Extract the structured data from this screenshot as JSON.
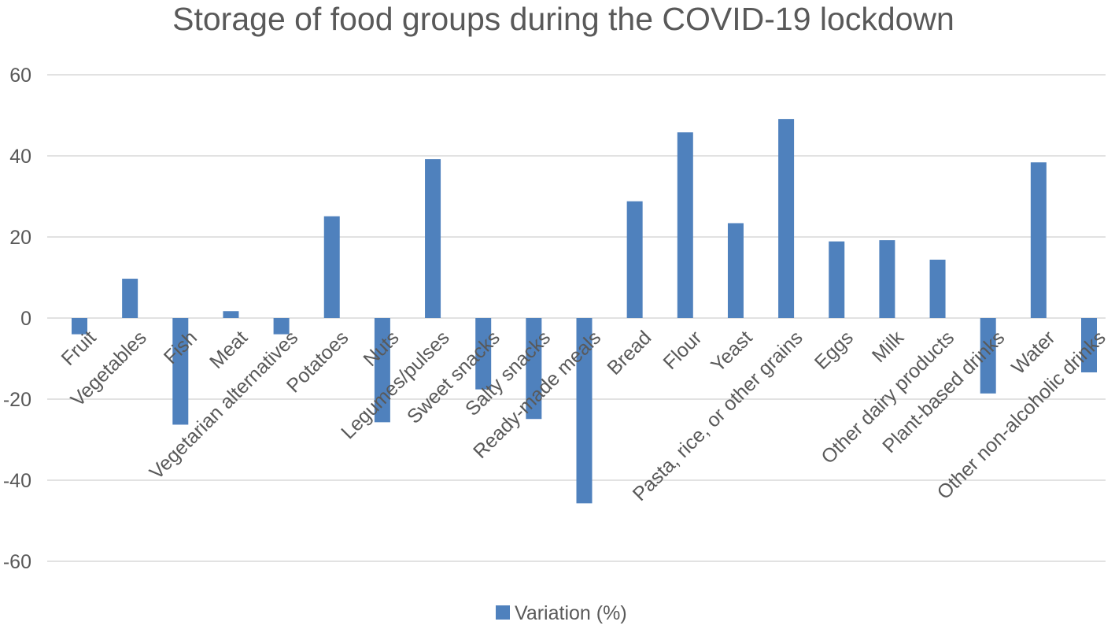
{
  "chart_data": {
    "type": "bar",
    "title": "Storage of food groups during the COVID-19 lockdown",
    "xlabel": "",
    "ylabel": "",
    "ylim": [
      -60,
      60
    ],
    "yticks": [
      60,
      40,
      20,
      0,
      -20,
      -40,
      -60
    ],
    "grid": true,
    "legend_position": "bottom",
    "categories": [
      "Fruit",
      "Vegetables",
      "Fish",
      "Meat",
      "Vegetarian alternatives",
      "Potatoes",
      "Nuts",
      "Legumes/pulses",
      "Sweet snacks",
      "Salty snacks",
      "Ready-made meals",
      "Bread",
      "Flour",
      "Yeast",
      "Pasta, rice, or other grains",
      "Eggs",
      "Milk",
      "Other dairy products",
      "Plant-based drinks",
      "Water",
      "Other non-alcoholic drinks"
    ],
    "series": [
      {
        "name": "Variation (%)",
        "color": "#4f81bd",
        "values": [
          -4,
          9.7,
          -26.3,
          1.7,
          -4,
          25.1,
          -25.7,
          39.2,
          -17.6,
          -24.9,
          -45.7,
          28.8,
          45.8,
          23.4,
          49.1,
          18.9,
          19.2,
          14.4,
          -18.6,
          38.4,
          -13.4
        ]
      }
    ]
  }
}
